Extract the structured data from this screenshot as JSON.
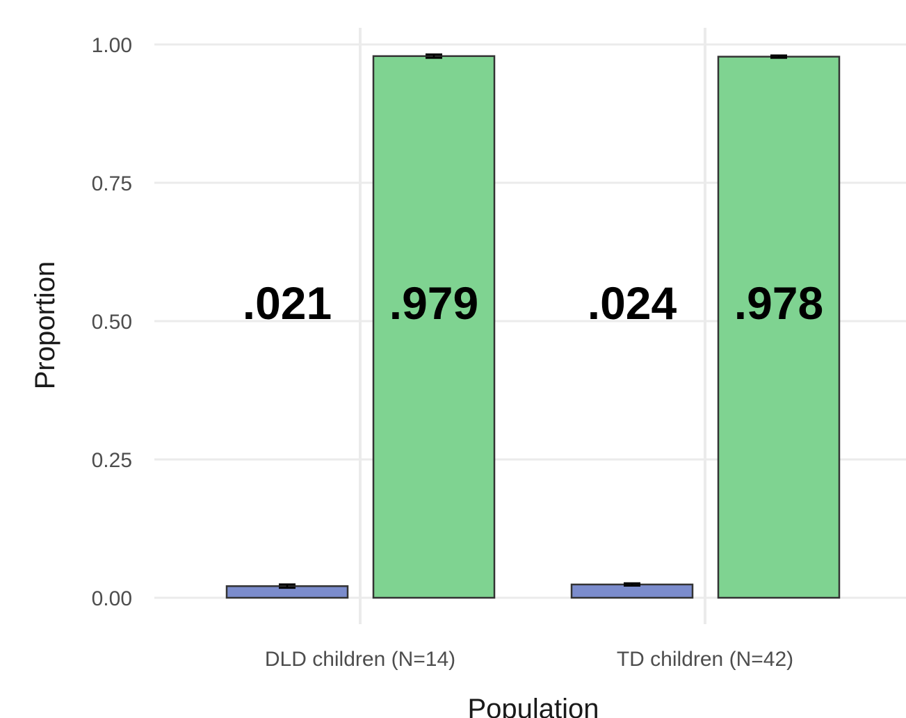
{
  "chart_data": {
    "type": "bar",
    "title": "",
    "xlabel": "Population",
    "ylabel": "Proportion",
    "ylim": [
      0,
      1
    ],
    "y_ticks": [
      "0.00",
      "0.25",
      "0.50",
      "0.75",
      "1.00"
    ],
    "grid": true,
    "legend": "none",
    "categories": [
      "DLD children (N=14)",
      "TD children (N=42)"
    ],
    "series": [
      {
        "color": "#7b8ccc",
        "values": [
          0.021,
          0.024
        ],
        "error": [
          0.003,
          0.002
        ],
        "data_labels": [
          ".021",
          ".024"
        ]
      },
      {
        "color": "#7fd391",
        "values": [
          0.979,
          0.978
        ],
        "error": [
          0.003,
          0.002
        ],
        "data_labels": [
          ".979",
          ".978"
        ]
      }
    ]
  }
}
